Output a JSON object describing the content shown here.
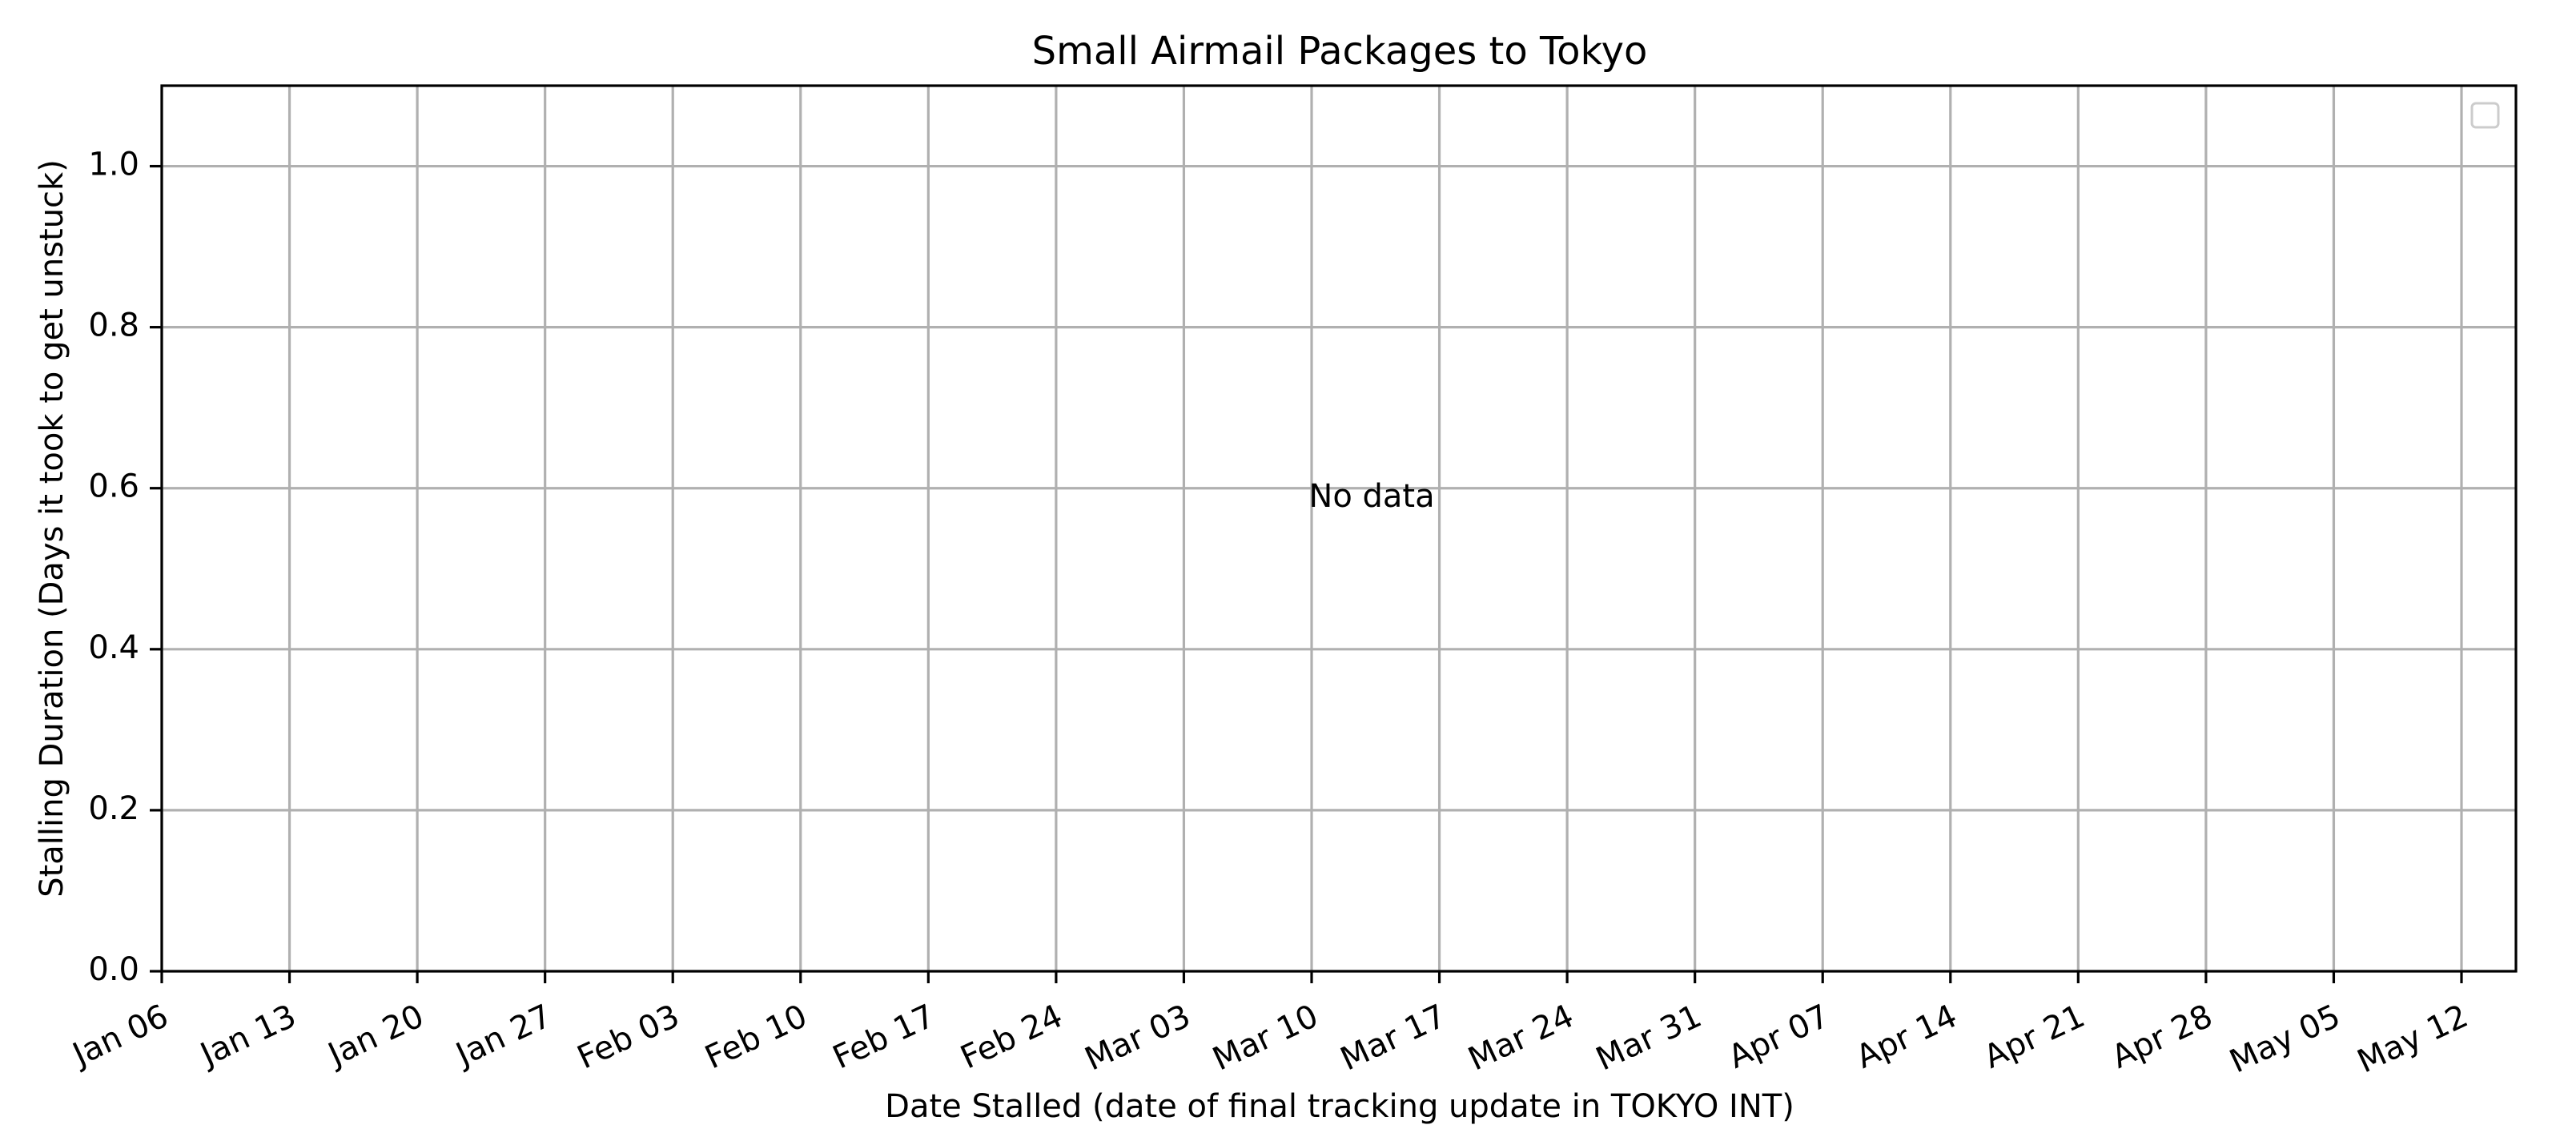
{
  "chart_data": {
    "type": "scatter",
    "title": "Small Airmail Packages to Tokyo",
    "xlabel": "Date Stalled (date of final tracking update in TOKYO INT)",
    "ylabel": "Stalling Duration (Days it took to get unstuck)",
    "x_ticks": [
      "Jan 06",
      "Jan 13",
      "Jan 20",
      "Jan 27",
      "Feb 03",
      "Feb 10",
      "Feb 17",
      "Feb 24",
      "Mar 03",
      "Mar 10",
      "Mar 17",
      "Mar 24",
      "Mar 31",
      "Apr 07",
      "Apr 14",
      "Apr 21",
      "Apr 28",
      "May 05",
      "May 12"
    ],
    "y_ticks": [
      "0.0",
      "0.2",
      "0.4",
      "0.6",
      "0.8",
      "1.0"
    ],
    "ylim": [
      0,
      1.1
    ],
    "grid": true,
    "legend": "top-right",
    "legend_entries": [],
    "series": [],
    "annotation": "No data"
  }
}
